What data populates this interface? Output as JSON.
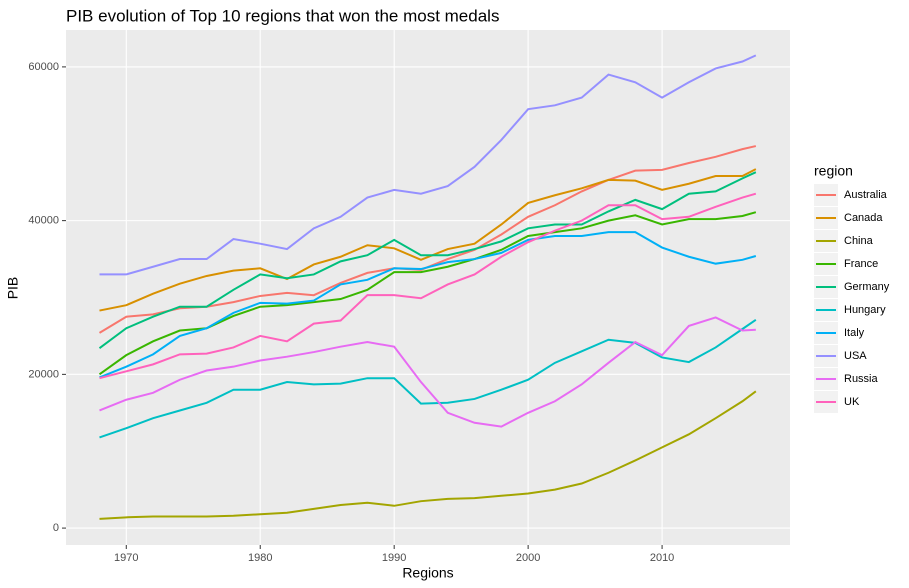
{
  "chart_data": {
    "type": "line",
    "title": "PIB evolution of Top 10 regions that won the most medals",
    "x_label": "Regions",
    "y_label": "PIB",
    "legend_title": "region",
    "x": [
      1968,
      1970,
      1972,
      1974,
      1976,
      1978,
      1980,
      1982,
      1984,
      1986,
      1988,
      1990,
      1992,
      1994,
      1996,
      1998,
      2000,
      2002,
      2004,
      2006,
      2008,
      2010,
      2012,
      2014,
      2016,
      2017
    ],
    "series": [
      {
        "name": "Australia",
        "color": "#F8766D",
        "values": [
          25400,
          27500,
          27800,
          28600,
          28800,
          29400,
          30200,
          30600,
          30300,
          31900,
          33200,
          33800,
          33600,
          35000,
          36200,
          38200,
          40500,
          42000,
          43800,
          45300,
          46500,
          46600,
          47500,
          48300,
          49300,
          49700
        ]
      },
      {
        "name": "Canada",
        "color": "#D89000",
        "values": [
          28300,
          29000,
          30500,
          31800,
          32800,
          33500,
          33800,
          32400,
          34300,
          35300,
          36800,
          36400,
          34900,
          36300,
          37000,
          39500,
          42300,
          43300,
          44200,
          45300,
          45200,
          44000,
          44800,
          45800,
          45800,
          46700
        ]
      },
      {
        "name": "China",
        "color": "#A3A500",
        "values": [
          1200,
          1400,
          1500,
          1500,
          1500,
          1600,
          1800,
          2000,
          2500,
          3000,
          3300,
          2900,
          3500,
          3800,
          3900,
          4200,
          4500,
          5000,
          5800,
          7200,
          8800,
          10500,
          12200,
          14300,
          16500,
          17800
        ]
      },
      {
        "name": "France",
        "color": "#39B600",
        "values": [
          20000,
          22500,
          24300,
          25700,
          26000,
          27600,
          28800,
          29000,
          29400,
          29800,
          31000,
          33300,
          33300,
          34000,
          35000,
          36200,
          38000,
          38500,
          39000,
          40000,
          40700,
          39500,
          40200,
          40200,
          40600,
          41100
        ]
      },
      {
        "name": "Germany",
        "color": "#00BF7D",
        "values": [
          23400,
          26000,
          27500,
          28800,
          28800,
          31000,
          33000,
          32500,
          33000,
          34700,
          35500,
          37500,
          35500,
          35500,
          36300,
          37300,
          39000,
          39500,
          39500,
          41200,
          42700,
          41500,
          43500,
          43800,
          45500,
          46300
        ]
      },
      {
        "name": "Hungary",
        "color": "#00BFC4",
        "values": [
          11800,
          13000,
          14300,
          15300,
          16300,
          18000,
          18000,
          19000,
          18700,
          18800,
          19500,
          19500,
          16200,
          16300,
          16800,
          18000,
          19300,
          21500,
          23000,
          24500,
          24100,
          22200,
          21600,
          23500,
          25900,
          27100
        ]
      },
      {
        "name": "Italy",
        "color": "#00B0F6",
        "values": [
          19600,
          21000,
          22600,
          25000,
          26000,
          28000,
          29300,
          29200,
          29600,
          31700,
          32300,
          33800,
          33700,
          34600,
          35000,
          35800,
          37500,
          38000,
          38000,
          38500,
          38500,
          36500,
          35300,
          34400,
          34900,
          35400
        ]
      },
      {
        "name": "USA",
        "color": "#9590FF",
        "values": [
          33000,
          33000,
          34000,
          35000,
          35000,
          37600,
          37000,
          36300,
          39000,
          40500,
          43000,
          44000,
          43500,
          44500,
          47000,
          50500,
          54500,
          55000,
          56000,
          59000,
          58000,
          56000,
          58000,
          59800,
          60700,
          61500
        ]
      },
      {
        "name": "Russia",
        "color": "#E76BF3",
        "values": [
          15300,
          16700,
          17600,
          19300,
          20500,
          21000,
          21800,
          22300,
          22900,
          23600,
          24200,
          23600,
          19000,
          15000,
          13700,
          13200,
          15000,
          16500,
          18700,
          21500,
          24200,
          22500,
          26300,
          27400,
          25700,
          25800
        ]
      },
      {
        "name": "UK",
        "color": "#FF62BC",
        "values": [
          19500,
          20400,
          21300,
          22600,
          22700,
          23500,
          25000,
          24300,
          26600,
          27000,
          30300,
          30300,
          29900,
          31700,
          33000,
          35300,
          37200,
          38700,
          40000,
          42000,
          42000,
          40200,
          40500,
          41800,
          43000,
          43500
        ]
      }
    ],
    "xlim": [
      1965.5,
      2019.55
    ],
    "ylim": [
      -2200,
      64800
    ],
    "xticks": [
      1970,
      1980,
      1990,
      2000,
      2010
    ],
    "yticks": [
      0,
      20000,
      40000,
      60000
    ],
    "grid": true
  }
}
